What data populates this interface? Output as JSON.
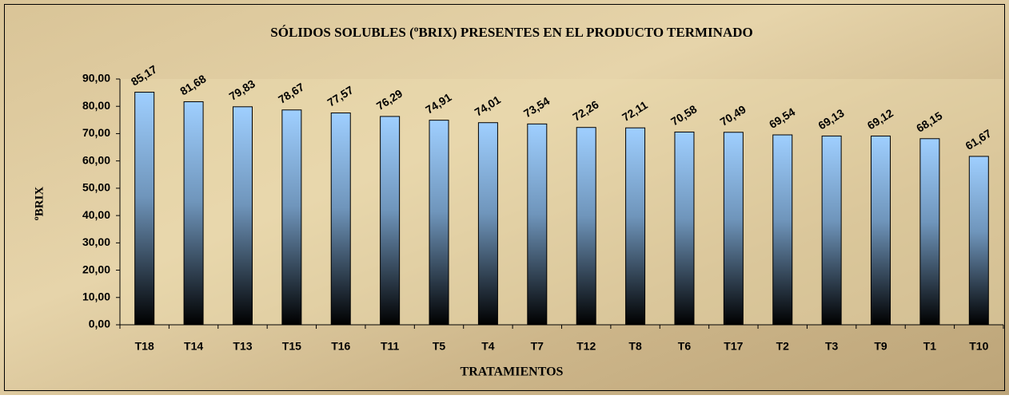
{
  "chart_data": {
    "type": "bar",
    "title": "SÓLIDOS SOLUBLES (ºBRIX) PRESENTES EN EL PRODUCTO TERMINADO",
    "x_label": "TRATAMIENTOS",
    "y_label": "ºBRIX",
    "categories": [
      "T18",
      "T14",
      "T13",
      "T15",
      "T16",
      "T11",
      "T5",
      "T4",
      "T7",
      "T12",
      "T8",
      "T6",
      "T17",
      "T2",
      "T3",
      "T9",
      "T1",
      "T10"
    ],
    "values": [
      85.17,
      81.68,
      79.83,
      78.67,
      77.57,
      76.29,
      74.91,
      74.01,
      73.54,
      72.26,
      72.11,
      70.58,
      70.49,
      69.54,
      69.13,
      69.12,
      68.15,
      61.67
    ],
    "value_labels": [
      "85,17",
      "81,68",
      "79,83",
      "78,67",
      "77,57",
      "76,29",
      "74,91",
      "74,01",
      "73,54",
      "72,26",
      "72,11",
      "70,58",
      "70,49",
      "69,54",
      "69,13",
      "69,12",
      "68,15",
      "61,67"
    ],
    "color": "#9fcfff",
    "ylim": [
      0,
      90
    ],
    "yticks": [
      {
        "value": 0,
        "label": "0,00"
      },
      {
        "value": 10,
        "label": "10,00"
      },
      {
        "value": 20,
        "label": "20,00"
      },
      {
        "value": 30,
        "label": "30,00"
      },
      {
        "value": 40,
        "label": "40,00"
      },
      {
        "value": 50,
        "label": "50,00"
      },
      {
        "value": 60,
        "label": "60,00"
      },
      {
        "value": 70,
        "label": "70,00"
      },
      {
        "value": 80,
        "label": "80,00"
      },
      {
        "value": 90,
        "label": "90,00"
      }
    ],
    "grid": false
  }
}
